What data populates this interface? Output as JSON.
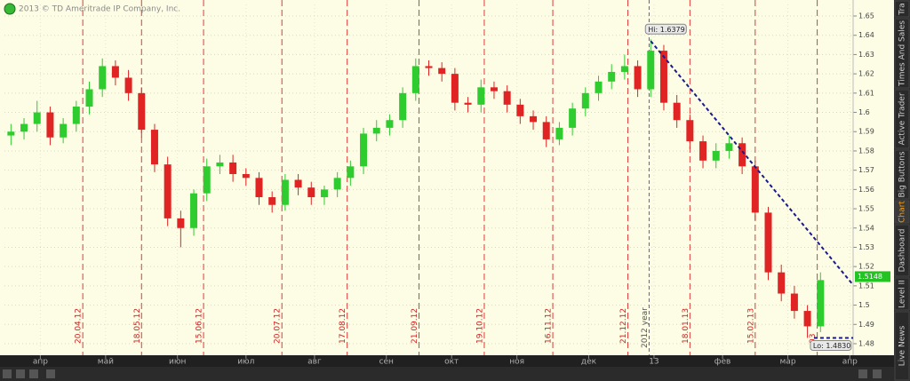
{
  "chart_data": {
    "type": "candlestick",
    "copyright": "2013 © TD Ameritrade IP Company, Inc.",
    "up_color": "#2ecc2e",
    "down_color": "#e02424",
    "x": [
      2,
      6,
      10,
      14,
      18,
      22,
      26,
      30,
      34,
      38,
      42,
      46,
      50,
      54,
      58,
      62,
      66,
      70,
      74,
      78,
      82,
      86,
      90,
      94,
      98,
      102,
      106,
      110,
      114,
      118,
      122,
      126,
      130,
      134,
      138,
      142,
      146,
      150,
      154,
      158,
      162,
      166,
      170,
      174,
      178,
      182,
      186,
      190,
      194,
      198,
      202,
      206,
      210,
      214,
      218,
      222,
      226,
      230,
      234,
      238,
      242,
      246,
      250
    ],
    "open": [
      1.588,
      1.59,
      1.594,
      1.6,
      1.587,
      1.594,
      1.603,
      1.612,
      1.624,
      1.618,
      1.61,
      1.591,
      1.573,
      1.545,
      1.54,
      1.558,
      1.572,
      1.574,
      1.568,
      1.566,
      1.556,
      1.552,
      1.565,
      1.561,
      1.556,
      1.56,
      1.566,
      1.572,
      1.589,
      1.592,
      1.596,
      1.61,
      1.624,
      1.623,
      1.62,
      1.605,
      1.604,
      1.613,
      1.611,
      1.604,
      1.598,
      1.595,
      1.586,
      1.592,
      1.602,
      1.61,
      1.616,
      1.621,
      1.624,
      1.612,
      1.632,
      1.605,
      1.596,
      1.585,
      1.575,
      1.58,
      1.584,
      1.572,
      1.548,
      1.517,
      1.506,
      1.497,
      1.489
    ],
    "high": [
      1.594,
      1.597,
      1.606,
      1.603,
      1.597,
      1.606,
      1.616,
      1.628,
      1.627,
      1.622,
      1.613,
      1.594,
      1.577,
      1.549,
      1.56,
      1.576,
      1.578,
      1.578,
      1.571,
      1.569,
      1.559,
      1.568,
      1.568,
      1.564,
      1.562,
      1.569,
      1.575,
      1.592,
      1.596,
      1.599,
      1.613,
      1.628,
      1.627,
      1.626,
      1.623,
      1.608,
      1.617,
      1.616,
      1.614,
      1.607,
      1.601,
      1.598,
      1.595,
      1.605,
      1.613,
      1.619,
      1.625,
      1.63,
      1.627,
      1.6379,
      1.635,
      1.609,
      1.599,
      1.588,
      1.584,
      1.588,
      1.587,
      1.575,
      1.551,
      1.521,
      1.51,
      1.5,
      1.517
    ],
    "low": [
      1.583,
      1.586,
      1.59,
      1.583,
      1.584,
      1.59,
      1.599,
      1.608,
      1.614,
      1.606,
      1.587,
      1.569,
      1.541,
      1.53,
      1.536,
      1.554,
      1.568,
      1.564,
      1.562,
      1.552,
      1.548,
      1.549,
      1.557,
      1.552,
      1.552,
      1.556,
      1.562,
      1.568,
      1.585,
      1.588,
      1.592,
      1.606,
      1.619,
      1.616,
      1.601,
      1.6,
      1.6,
      1.607,
      1.6,
      1.594,
      1.591,
      1.582,
      1.583,
      1.588,
      1.598,
      1.606,
      1.612,
      1.617,
      1.608,
      1.608,
      1.601,
      1.592,
      1.581,
      1.571,
      1.571,
      1.576,
      1.568,
      1.544,
      1.513,
      1.502,
      1.493,
      1.483,
      1.486
    ],
    "close": [
      1.59,
      1.594,
      1.6,
      1.587,
      1.594,
      1.603,
      1.612,
      1.624,
      1.618,
      1.61,
      1.591,
      1.573,
      1.545,
      1.54,
      1.558,
      1.572,
      1.574,
      1.568,
      1.566,
      1.556,
      1.552,
      1.565,
      1.561,
      1.556,
      1.56,
      1.566,
      1.572,
      1.589,
      1.592,
      1.596,
      1.61,
      1.624,
      1.623,
      1.62,
      1.605,
      1.604,
      1.613,
      1.611,
      1.604,
      1.598,
      1.595,
      1.586,
      1.592,
      1.602,
      1.61,
      1.616,
      1.621,
      1.624,
      1.612,
      1.632,
      1.605,
      1.596,
      1.585,
      1.575,
      1.58,
      1.584,
      1.572,
      1.548,
      1.517,
      1.506,
      1.497,
      1.489,
      1.513
    ],
    "xlim": [
      0,
      260
    ],
    "ylim": [
      1.474,
      1.656
    ],
    "yticks": [
      1.48,
      1.49,
      1.5,
      1.51,
      1.52,
      1.53,
      1.54,
      1.55,
      1.56,
      1.57,
      1.58,
      1.59,
      1.6,
      1.61,
      1.62,
      1.63,
      1.64,
      1.65
    ],
    "xticks": [
      {
        "value": 11,
        "label": "апр"
      },
      {
        "value": 31,
        "label": "май"
      },
      {
        "value": 53,
        "label": "июн"
      },
      {
        "value": 74,
        "label": "июл"
      },
      {
        "value": 95,
        "label": "авг"
      },
      {
        "value": 117,
        "label": "сен"
      },
      {
        "value": 137,
        "label": "окт"
      },
      {
        "value": 157,
        "label": "ноя"
      },
      {
        "value": 179,
        "label": "дек"
      },
      {
        "value": 199,
        "label": "13"
      },
      {
        "value": 220,
        "label": "фев"
      },
      {
        "value": 240,
        "label": "мар"
      },
      {
        "value": 259,
        "label": "апр"
      }
    ],
    "event_lines": [
      {
        "value": 24,
        "label": "20.04.12"
      },
      {
        "value": 42,
        "label": "18.05.12"
      },
      {
        "value": 61,
        "label": "15.06.12"
      },
      {
        "value": 85,
        "label": "20.07.12"
      },
      {
        "value": 105,
        "label": "17.08.12"
      },
      {
        "value": 127,
        "label": "21.09.12"
      },
      {
        "value": 147,
        "label": "19.10.12"
      },
      {
        "value": 168,
        "label": "16.11.12"
      },
      {
        "value": 191,
        "label": "21.12.12"
      },
      {
        "value": 210,
        "label": "18.01.13"
      },
      {
        "value": 230,
        "label": "15.02.13"
      },
      {
        "value": 249,
        "label": "03"
      }
    ],
    "year_line": {
      "value": 197.5,
      "label": "2012 year"
    },
    "hi": {
      "label": "Hi: 1.6379",
      "value": 1.6379,
      "x": 198
    },
    "lo": {
      "label": "Lo: 1.4830",
      "value": 1.483,
      "x": [
        248,
        260
      ]
    },
    "last_price": {
      "label": "1.5148",
      "value": 1.5148
    },
    "trendline": {
      "x": [
        198,
        260
      ],
      "y": [
        1.637,
        1.5105
      ]
    },
    "grid": true
  },
  "sidebar": {
    "tabs": [
      "Tra",
      "Times And Sales",
      "Active Trader",
      "Big Buttons",
      "Chart",
      "Dashboard",
      "Level II",
      "Live News"
    ]
  }
}
